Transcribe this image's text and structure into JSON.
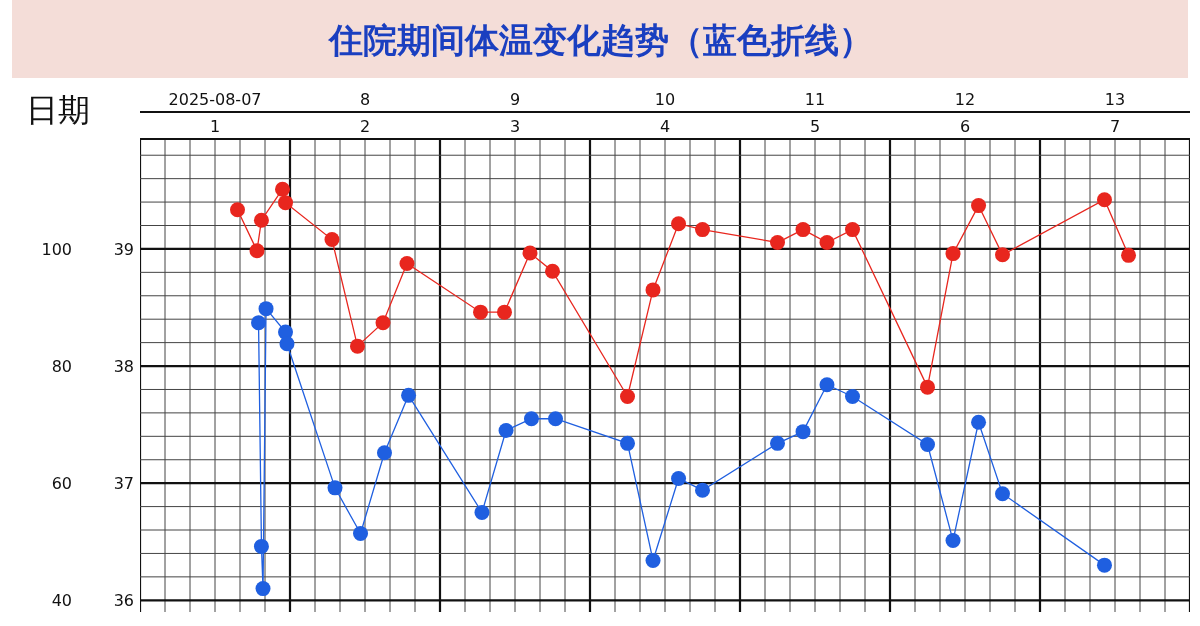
{
  "chart_data": {
    "type": "line",
    "title": "住院期间体温变化趋势（蓝色折线）",
    "xlabel": "日期",
    "xlim": [
      "2025-08-07",
      "2025-08-14"
    ],
    "xticks": [
      {
        "value": "2025-08-07T12:00",
        "label": "2025-08-07"
      },
      {
        "value": "2025-08-08T12:00",
        "label": "8"
      },
      {
        "value": "2025-08-09T12:00",
        "label": "9"
      },
      {
        "value": "2025-08-10T12:00",
        "label": "10"
      },
      {
        "value": "2025-08-11T12:00",
        "label": "11"
      },
      {
        "value": "2025-08-12T12:00",
        "label": "12"
      },
      {
        "value": "2025-08-13T12:00",
        "label": "13"
      }
    ],
    "x2lim": [
      0.5,
      7.5
    ],
    "x2ticks": [
      1,
      2,
      3,
      4,
      5,
      6,
      7
    ],
    "ylim": [
      35.9,
      39.93
    ],
    "yticks": [
      36,
      37,
      38,
      39
    ],
    "y2lim": [
      38,
      118.6
    ],
    "y2ticks": [
      40,
      60,
      80,
      100
    ],
    "grid": true,
    "marker": "circle",
    "line_style": "solid",
    "series": [
      {
        "color": "#e8261e",
        "axis": "y2",
        "x": [
          "2025-08-07T15:36",
          "2025-08-07T18:43",
          "2025-08-07T19:26",
          "2025-08-07T22:48",
          "2025-08-07T23:17",
          "2025-08-08T06:43",
          "2025-08-08T10:48",
          "2025-08-08T14:53",
          "2025-08-08T18:43",
          "2025-08-09T06:29",
          "2025-08-09T10:19",
          "2025-08-09T14:24",
          "2025-08-09T18:00",
          "2025-08-10T06:00",
          "2025-08-10T10:05",
          "2025-08-10T14:10",
          "2025-08-10T18:00",
          "2025-08-11T06:00",
          "2025-08-11T10:05",
          "2025-08-11T13:55",
          "2025-08-11T18:00",
          "2025-08-12T06:00",
          "2025-08-12T10:05",
          "2025-08-12T14:10",
          "2025-08-12T18:00",
          "2025-08-13T10:19",
          "2025-08-13T14:10"
        ],
        "values": [
          106.7,
          99.7,
          104.9,
          110.2,
          107.9,
          101.6,
          83.4,
          87.4,
          97.5,
          89.2,
          89.2,
          99.3,
          96.2,
          74.8,
          93.0,
          104.3,
          103.3,
          101.1,
          103.3,
          101.1,
          103.3,
          76.4,
          99.2,
          107.4,
          99.0,
          108.4,
          98.9
        ]
      },
      {
        "color": "#1f5fe0",
        "axis": "y",
        "x": [
          "2025-08-07T18:58",
          "2025-08-07T19:26",
          "2025-08-07T19:41",
          "2025-08-07T20:10",
          "2025-08-07T23:17",
          "2025-08-07T23:31",
          "2025-08-08T07:12",
          "2025-08-08T11:17",
          "2025-08-08T15:07",
          "2025-08-08T18:58",
          "2025-08-09T06:43",
          "2025-08-09T10:34",
          "2025-08-09T14:38",
          "2025-08-09T18:29",
          "2025-08-10T06:00",
          "2025-08-10T10:05",
          "2025-08-10T14:10",
          "2025-08-10T18:00",
          "2025-08-11T06:00",
          "2025-08-11T10:05",
          "2025-08-11T13:55",
          "2025-08-11T18:00",
          "2025-08-12T06:00",
          "2025-08-12T10:05",
          "2025-08-12T14:10",
          "2025-08-12T18:00",
          "2025-08-13T10:19"
        ],
        "values": [
          38.37,
          36.46,
          36.1,
          38.49,
          38.29,
          38.19,
          36.96,
          36.57,
          37.26,
          37.75,
          36.75,
          37.45,
          37.55,
          37.55,
          37.34,
          36.34,
          37.04,
          36.94,
          37.34,
          37.44,
          37.84,
          37.74,
          37.33,
          36.51,
          37.52,
          36.91,
          36.3
        ]
      }
    ]
  }
}
